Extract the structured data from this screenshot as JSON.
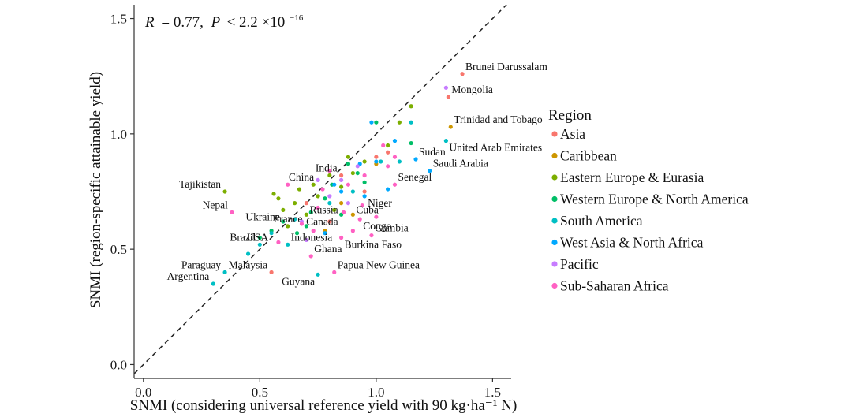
{
  "chart_data": {
    "type": "scatter",
    "title": "",
    "annotation": {
      "r_label": "R",
      "r_value": "= 0.77,",
      "p_label": "P",
      "p_value": "< 2.2 ×10",
      "p_exponent": "−16"
    },
    "xlabel": "SNMI (considering universal reference yield with 90 kg·ha⁻¹ N)",
    "ylabel": "SNMI (region-specific attainable yield)",
    "xlim": [
      -0.04,
      1.58
    ],
    "ylim": [
      -0.06,
      1.56
    ],
    "x_ticks": [
      0.0,
      0.5,
      1.0,
      1.5
    ],
    "x_tick_labels": [
      "0.0",
      "0.5",
      "1.0",
      "1.5"
    ],
    "y_ticks": [
      0.0,
      0.5,
      1.0,
      1.5
    ],
    "y_tick_labels": [
      "0.0",
      "0.5",
      "1.0",
      "1.5"
    ],
    "reference_line": {
      "slope": 1,
      "intercept": 0,
      "style": "dashed"
    },
    "grid": false,
    "legend_position": "right",
    "legend_title": "Region",
    "series": [
      {
        "name": "Asia",
        "color": "#F8766D",
        "points": [
          [
            1.37,
            1.26
          ],
          [
            1.31,
            1.16
          ],
          [
            0.55,
            0.4
          ],
          [
            1.05,
            0.92
          ],
          [
            0.8,
            0.62
          ],
          [
            0.7,
            0.7
          ],
          [
            1.0,
            0.9
          ],
          [
            0.95,
            0.75
          ],
          [
            0.85,
            0.82
          ]
        ]
      },
      {
        "name": "Caribbean",
        "color": "#CD9600",
        "points": [
          [
            1.32,
            1.03
          ],
          [
            0.9,
            0.65
          ],
          [
            0.85,
            0.7
          ],
          [
            1.0,
            0.87
          ],
          [
            0.78,
            0.58
          ]
        ]
      },
      {
        "name": "Eastern Europe & Eurasia",
        "color": "#7CAE00",
        "points": [
          [
            0.35,
            0.75
          ],
          [
            0.6,
            0.67
          ],
          [
            0.56,
            0.74
          ],
          [
            0.85,
            0.77
          ],
          [
            1.15,
            1.12
          ],
          [
            0.73,
            0.78
          ],
          [
            0.95,
            0.88
          ],
          [
            0.65,
            0.7
          ],
          [
            1.05,
            0.95
          ],
          [
            0.88,
            0.9
          ],
          [
            0.8,
            0.82
          ],
          [
            0.62,
            0.6
          ],
          [
            0.7,
            0.65
          ],
          [
            0.58,
            0.72
          ],
          [
            1.1,
            1.05
          ],
          [
            0.9,
            0.83
          ],
          [
            0.75,
            0.73
          ],
          [
            0.67,
            0.76
          ],
          [
            0.82,
            0.67
          ]
        ]
      },
      {
        "name": "Western Europe & North America",
        "color": "#00BE67",
        "points": [
          [
            0.55,
            0.58
          ],
          [
            0.7,
            0.6
          ],
          [
            0.85,
            0.65
          ],
          [
            0.5,
            0.55
          ],
          [
            0.95,
            0.79
          ],
          [
            0.88,
            0.87
          ],
          [
            1.15,
            0.96
          ],
          [
            1.0,
            1.05
          ],
          [
            0.6,
            0.62
          ],
          [
            0.72,
            0.66
          ],
          [
            0.78,
            0.72
          ],
          [
            0.92,
            0.83
          ],
          [
            0.81,
            0.78
          ],
          [
            0.66,
            0.57
          ]
        ]
      },
      {
        "name": "South America",
        "color": "#00BFC4",
        "points": [
          [
            0.3,
            0.35
          ],
          [
            0.35,
            0.4
          ],
          [
            0.5,
            0.52
          ],
          [
            0.75,
            0.39
          ],
          [
            0.55,
            0.57
          ],
          [
            0.65,
            0.63
          ],
          [
            0.8,
            0.7
          ],
          [
            0.9,
            0.75
          ],
          [
            1.02,
            0.88
          ],
          [
            1.15,
            1.05
          ],
          [
            0.45,
            0.48
          ],
          [
            0.62,
            0.52
          ],
          [
            1.1,
            0.88
          ],
          [
            1.3,
            0.97
          ]
        ]
      },
      {
        "name": "West Asia & North Africa",
        "color": "#00A9FF",
        "points": [
          [
            1.23,
            0.84
          ],
          [
            0.95,
            0.73
          ],
          [
            1.0,
            0.88
          ],
          [
            1.05,
            0.76
          ],
          [
            1.17,
            0.89
          ],
          [
            0.93,
            0.87
          ],
          [
            0.98,
            1.05
          ],
          [
            0.82,
            0.78
          ],
          [
            1.08,
            0.97
          ],
          [
            0.85,
            0.75
          ],
          [
            0.78,
            0.57
          ]
        ]
      },
      {
        "name": "Pacific",
        "color": "#C77CFF",
        "points": [
          [
            1.3,
            1.2
          ],
          [
            0.85,
            0.8
          ],
          [
            0.8,
            0.73
          ],
          [
            0.92,
            0.86
          ],
          [
            0.7,
            0.54
          ],
          [
            0.68,
            0.62
          ],
          [
            0.75,
            0.8
          ],
          [
            0.88,
            0.7
          ]
        ]
      },
      {
        "name": "Sub-Saharan Africa",
        "color": "#FF61C3",
        "points": [
          [
            0.38,
            0.66
          ],
          [
            0.72,
            0.47
          ],
          [
            0.82,
            0.4
          ],
          [
            0.98,
            0.56
          ],
          [
            0.93,
            0.63
          ],
          [
            0.85,
            0.55
          ],
          [
            1.08,
            0.78
          ],
          [
            1.08,
            0.9
          ],
          [
            1.03,
            0.95
          ],
          [
            0.94,
            0.69
          ],
          [
            0.58,
            0.53
          ],
          [
            0.75,
            0.68
          ],
          [
            0.88,
            0.78
          ],
          [
            0.8,
            0.84
          ],
          [
            0.95,
            0.82
          ],
          [
            0.68,
            0.61
          ],
          [
            1.0,
            0.64
          ],
          [
            0.9,
            0.58
          ],
          [
            0.77,
            0.76
          ],
          [
            0.62,
            0.78
          ],
          [
            1.05,
            0.86
          ],
          [
            0.86,
            0.66
          ],
          [
            0.73,
            0.58
          ]
        ]
      }
    ],
    "country_labels": [
      {
        "text": "Brunei Darussalam",
        "x": 1.37,
        "y": 1.26,
        "anchor": "ne"
      },
      {
        "text": "Mongolia",
        "x": 1.31,
        "y": 1.16,
        "anchor": "ne"
      },
      {
        "text": "Trinidad and Tobago",
        "x": 1.32,
        "y": 1.03,
        "anchor": "ne"
      },
      {
        "text": "Sudan",
        "x": 1.17,
        "y": 0.89,
        "anchor": "ne"
      },
      {
        "text": "United Arab Emirates",
        "x": 1.3,
        "y": 0.97,
        "anchor": "se"
      },
      {
        "text": "Saudi Arabia",
        "x": 1.23,
        "y": 0.84,
        "anchor": "ne"
      },
      {
        "text": "Senegal",
        "x": 1.08,
        "y": 0.78,
        "anchor": "ne"
      },
      {
        "text": "Tajikistan",
        "x": 0.35,
        "y": 0.75,
        "anchor": "nw"
      },
      {
        "text": "India",
        "x": 0.85,
        "y": 0.82,
        "anchor": "nw"
      },
      {
        "text": "China",
        "x": 0.75,
        "y": 0.78,
        "anchor": "nw"
      },
      {
        "text": "Nepal",
        "x": 0.38,
        "y": 0.66,
        "anchor": "nw"
      },
      {
        "text": "Ukraine",
        "x": 0.6,
        "y": 0.67,
        "anchor": "sw"
      },
      {
        "text": "Niger",
        "x": 0.95,
        "y": 0.73,
        "anchor": "se"
      },
      {
        "text": "Russia",
        "x": 0.85,
        "y": 0.7,
        "anchor": "sw"
      },
      {
        "text": "Cuba",
        "x": 0.9,
        "y": 0.7,
        "anchor": "se"
      },
      {
        "text": "Canada",
        "x": 0.85,
        "y": 0.65,
        "anchor": "sw"
      },
      {
        "text": "France",
        "x": 0.7,
        "y": 0.6,
        "anchor": "nw"
      },
      {
        "text": "Congo",
        "x": 0.93,
        "y": 0.63,
        "anchor": "se"
      },
      {
        "text": "USA",
        "x": 0.55,
        "y": 0.58,
        "anchor": "sw"
      },
      {
        "text": "Gambia",
        "x": 0.98,
        "y": 0.56,
        "anchor": "ne"
      },
      {
        "text": "Brazil",
        "x": 0.5,
        "y": 0.52,
        "anchor": "nw"
      },
      {
        "text": "Indonesia",
        "x": 0.62,
        "y": 0.52,
        "anchor": "ne"
      },
      {
        "text": "Burkina Faso",
        "x": 0.85,
        "y": 0.55,
        "anchor": "se"
      },
      {
        "text": "Ghana",
        "x": 0.72,
        "y": 0.47,
        "anchor": "ne"
      },
      {
        "text": "Paraguay",
        "x": 0.35,
        "y": 0.4,
        "anchor": "nw"
      },
      {
        "text": "Malaysia",
        "x": 0.55,
        "y": 0.4,
        "anchor": "nw"
      },
      {
        "text": "Argentina",
        "x": 0.3,
        "y": 0.35,
        "anchor": "nw"
      },
      {
        "text": "Papua New Guinea",
        "x": 0.82,
        "y": 0.4,
        "anchor": "ne"
      },
      {
        "text": "Guyana",
        "x": 0.75,
        "y": 0.39,
        "anchor": "sw"
      }
    ]
  }
}
